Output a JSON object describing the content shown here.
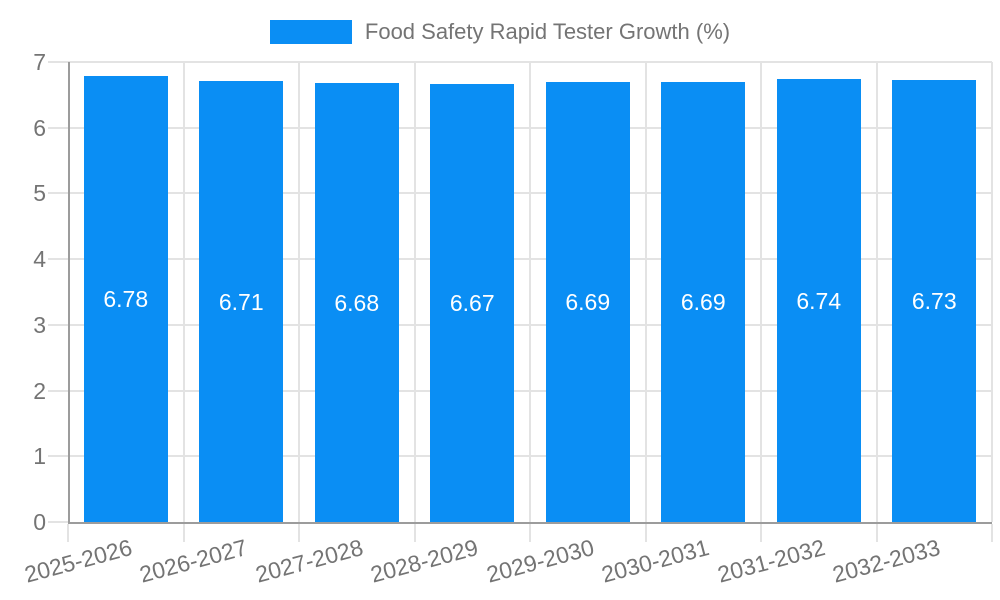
{
  "colors": {
    "bar": "#0A8EF4",
    "grid": "#E3E3E3",
    "axis": "#9C9C9C",
    "text": "#747474",
    "value_label": "#FFFFFF",
    "background": "#FFFFFF"
  },
  "legend": {
    "label": "Food Safety Rapid Tester Growth (%)"
  },
  "chart_data": {
    "type": "bar",
    "title": "Food Safety Rapid Tester Growth (%)",
    "categories": [
      "2025-2026",
      "2026-2027",
      "2027-2028",
      "2028-2029",
      "2029-2030",
      "2030-2031",
      "2031-2032",
      "2032-2033"
    ],
    "values": [
      6.78,
      6.71,
      6.68,
      6.67,
      6.69,
      6.69,
      6.74,
      6.73
    ],
    "value_labels": [
      "6.78",
      "6.71",
      "6.68",
      "6.67",
      "6.69",
      "6.69",
      "6.74",
      "6.73"
    ],
    "xlabel": "",
    "ylabel": "",
    "ylim": [
      0,
      7
    ],
    "yticks": [
      0,
      1,
      2,
      3,
      4,
      5,
      6,
      7
    ],
    "ytick_labels": [
      "0",
      "1",
      "2",
      "3",
      "4",
      "5",
      "6",
      "7"
    ],
    "grid": true,
    "legend_position": "top",
    "value_label_position": "inside-center",
    "x_label_rotation_deg": -15
  }
}
